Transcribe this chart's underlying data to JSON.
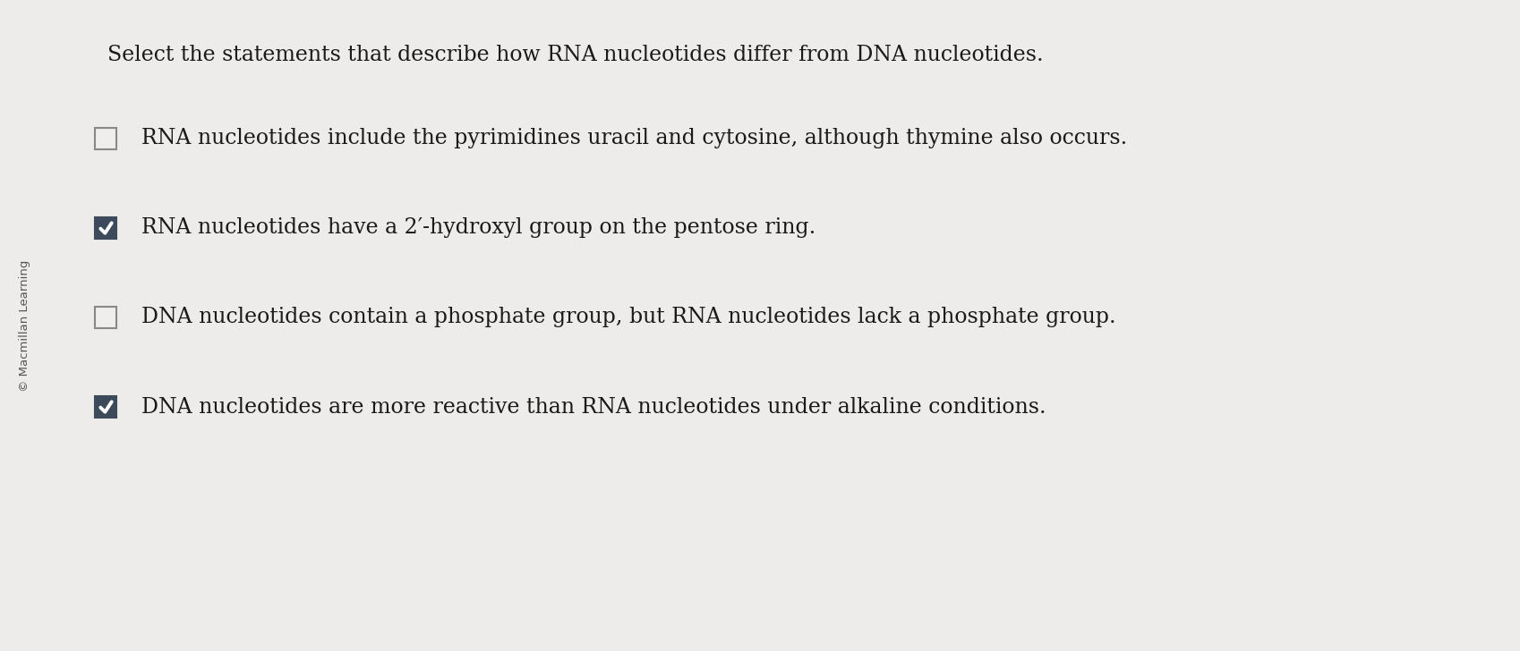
{
  "background_color": "#edecea",
  "title": "Select the statements that describe how RNA nucleotides differ from DNA nucleotides.",
  "title_fontsize": 17.0,
  "title_color": "#1a1a1a",
  "sidebar_text": "© Macmillan Learning",
  "items": [
    {
      "text": "RNA nucleotides include the pyrimidines uracil and cytosine, although thymine also occurs.",
      "checked": false
    },
    {
      "text": "RNA nucleotides have a 2′-hydroxyl group on the pentose ring.",
      "checked": true
    },
    {
      "text": "DNA nucleotides contain a phosphate group, but RNA nucleotides lack a phosphate group.",
      "checked": false
    },
    {
      "text": "DNA nucleotides are more reactive than RNA nucleotides under alkaline conditions.",
      "checked": true
    }
  ],
  "item_fontsize": 17.0,
  "item_color": "#1a1a1a",
  "checked_bg_color": "#3d4a5c",
  "unchecked_border_color": "#888888",
  "unchecked_bg_color": "#f0eeec",
  "checkmark_color": "#ffffff"
}
